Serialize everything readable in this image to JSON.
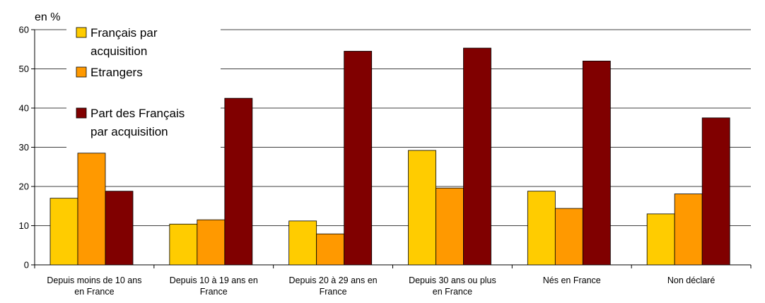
{
  "chart_data": {
    "type": "bar",
    "title": "",
    "xlabel": "",
    "ylabel": "en %",
    "ylim": [
      0,
      60
    ],
    "yticks": [
      0,
      10,
      20,
      30,
      40,
      50,
      60
    ],
    "grid": true,
    "legend_position": "top-left",
    "categories": [
      [
        "Depuis moins de 10 ans",
        "en France"
      ],
      [
        "Depuis 10 à 19 ans en",
        "France"
      ],
      [
        "Depuis 20 à 29 ans en",
        "France"
      ],
      [
        "Depuis 30 ans ou plus",
        "en France"
      ],
      [
        "Nés en France"
      ],
      [
        "Non déclaré"
      ]
    ],
    "series": [
      {
        "name": [
          "Français par",
          "acquisition"
        ],
        "color": "#FFCC00",
        "values": [
          17,
          10.4,
          11.2,
          29.2,
          18.8,
          13
        ]
      },
      {
        "name": [
          "Etrangers"
        ],
        "color": "#FF9900",
        "values": [
          28.5,
          11.5,
          7.9,
          19.6,
          14.4,
          18.1
        ]
      },
      {
        "name": [
          "Part des Français",
          "par acquisition"
        ],
        "color": "#800000",
        "values": [
          18.8,
          42.5,
          54.5,
          55.3,
          52,
          37.5
        ]
      }
    ]
  }
}
